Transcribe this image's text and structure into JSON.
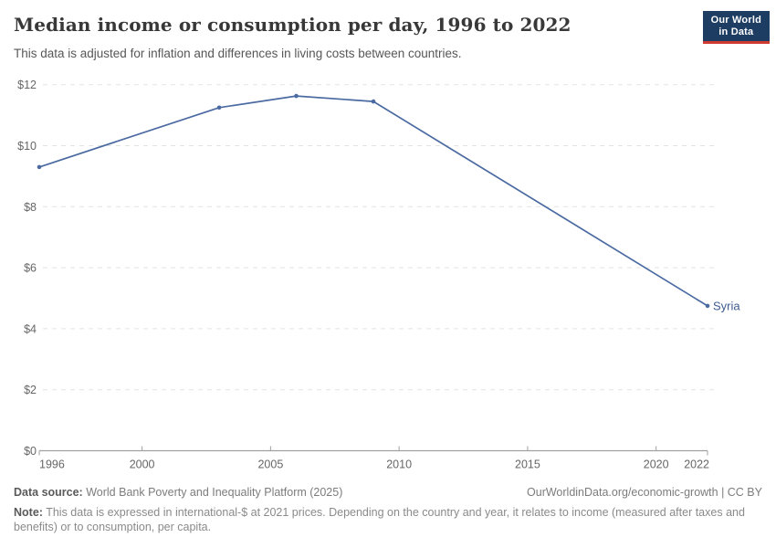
{
  "header": {
    "title": "Median income or consumption per day, 1996 to 2022",
    "subtitle": "This data is adjusted for inflation and differences in living costs between countries.",
    "logo": {
      "line1": "Our World",
      "line2": "in Data",
      "bg_color": "#1d3d63",
      "accent_color": "#cf3a31"
    }
  },
  "chart_data": {
    "type": "line",
    "title": "Median income or consumption per day, 1996 to 2022",
    "xlabel": "",
    "ylabel": "",
    "xlim": [
      1996,
      2022
    ],
    "ylim": [
      0,
      12
    ],
    "x_ticks": [
      1996,
      2000,
      2005,
      2010,
      2015,
      2020,
      2022
    ],
    "y_ticks": [
      0,
      2,
      4,
      6,
      8,
      10,
      12
    ],
    "y_tick_labels": [
      "$0",
      "$2",
      "$4",
      "$6",
      "$8",
      "$10",
      "$12"
    ],
    "grid": "horizontal-dashed",
    "legend_position": "end-of-line-label",
    "series": [
      {
        "name": "Syria",
        "x": [
          1996,
          2003,
          2006,
          2009,
          2022
        ],
        "values": [
          9.3,
          11.25,
          11.63,
          11.45,
          4.75
        ]
      }
    ],
    "line_color": "#4a6aa1",
    "marker_color": "#4a6aa1",
    "entity_label_color": "#3d5c8f",
    "grid_color": "#e3e3e3",
    "axis_color": "#a1a1a1",
    "tick_text_color": "#666666"
  },
  "footer": {
    "datasource_label": "Data source:",
    "datasource_text": "World Bank Poverty and Inequality Platform (2025)",
    "link_text": "OurWorldinData.org/economic-growth | CC BY",
    "note_label": "Note:",
    "note_text": "This data is expressed in international-$ at 2021 prices. Depending on the country and year, it relates to income (measured after taxes and benefits) or to consumption, per capita."
  }
}
